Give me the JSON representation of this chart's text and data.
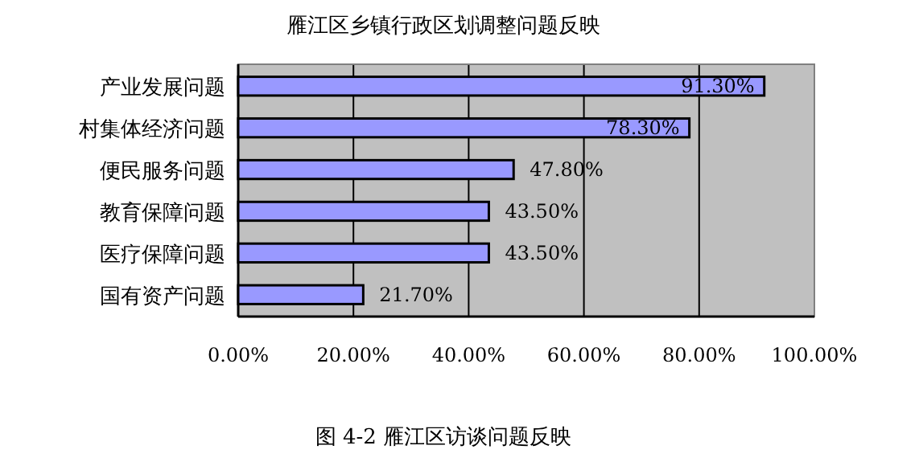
{
  "chart_data": {
    "type": "bar",
    "orientation": "horizontal",
    "title": "雁江区乡镇行政区划调整问题反映",
    "categories": [
      "产业发展问题",
      "村集体经济问题",
      "便民服务问题",
      "教育保障问题",
      "医疗保障问题",
      "国有资产问题"
    ],
    "values": [
      91.3,
      78.3,
      47.8,
      43.5,
      43.5,
      21.7
    ],
    "value_labels": [
      "91.30%",
      "78.30%",
      "47.80%",
      "43.50%",
      "43.50%",
      "21.70%"
    ],
    "color": "#9999ff",
    "xlim": [
      0,
      100
    ],
    "xticks": [
      {
        "value": 0,
        "label": "0.00%"
      },
      {
        "value": 20,
        "label": "20.00%"
      },
      {
        "value": 40,
        "label": "40.00%"
      },
      {
        "value": 60,
        "label": "60.00%"
      },
      {
        "value": 80,
        "label": "80.00%"
      },
      {
        "value": 100,
        "label": "100.00%"
      }
    ],
    "grid": "x",
    "annotations": [
      "图 4-2  雁江区访谈问题反映"
    ]
  }
}
